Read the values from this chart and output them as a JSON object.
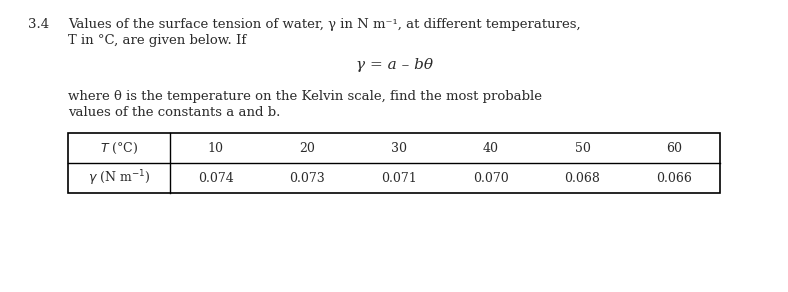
{
  "problem_number": "3.4",
  "line1": "Values of the surface tension of water, γ in N m⁻¹, at different temperatures,",
  "line2": "T in °C, are given below. If",
  "equation": "γ = a – bθ",
  "line3": "where θ is the temperature on the Kelvin scale, find the most probable",
  "line4": "values of the constants a and b.",
  "table_header_label": "T (°C)",
  "table_header_vals": [
    "10",
    "20",
    "30",
    "40",
    "50",
    "60"
  ],
  "table_row_label": "γ (N m⁻¹)",
  "table_row_vals": [
    "0.074",
    "0.073",
    "0.071",
    "0.070",
    "0.068",
    "0.066"
  ],
  "bg_color": "#ffffff",
  "text_color": "#2b2b2b",
  "fs": 9.5
}
